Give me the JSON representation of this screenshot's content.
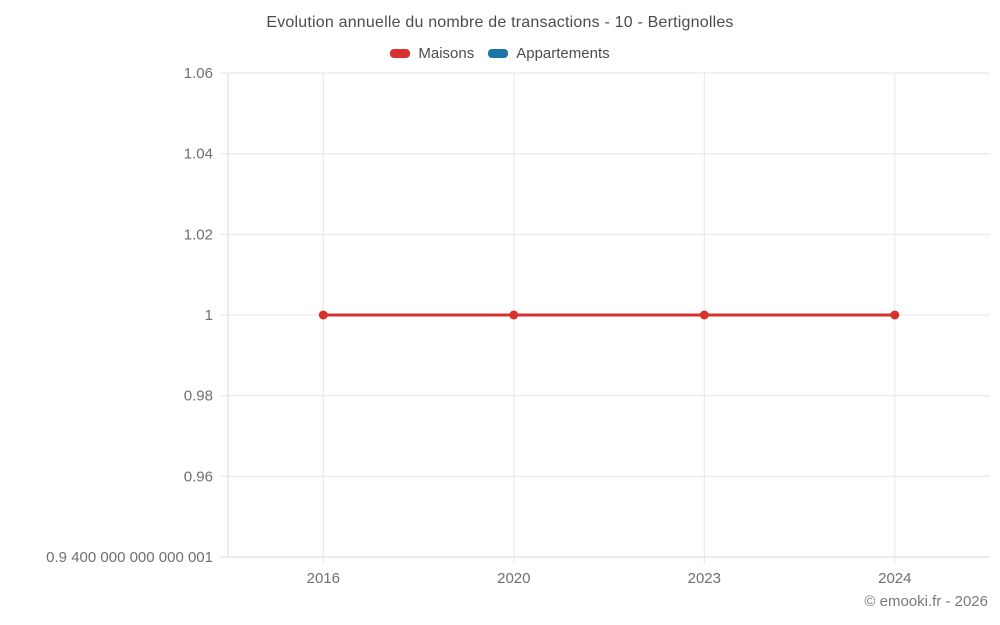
{
  "title": "Evolution annuelle du nombre de transactions - 10 - Bertignolles",
  "copyright": "© emooki.fr - 2026",
  "legend": [
    {
      "label": "Maisons",
      "color": "#d7312e"
    },
    {
      "label": "Appartements",
      "color": "#1a74a6"
    }
  ],
  "chart_data": {
    "type": "line",
    "title": "Evolution annuelle du nombre de transactions - 10 - Bertignolles",
    "categories": [
      "2016",
      "2020",
      "2023",
      "2024"
    ],
    "series": [
      {
        "name": "Maisons",
        "color": "#d7312e",
        "values": [
          1,
          1,
          1,
          1
        ]
      },
      {
        "name": "Appartements",
        "color": "#1a74a6",
        "values": []
      }
    ],
    "xlabel": "",
    "ylabel": "",
    "ylim": [
      0.9400000000000001,
      1.06
    ],
    "y_ticks": [
      {
        "value": 1.06,
        "label": "1.06"
      },
      {
        "value": 1.04,
        "label": "1.04"
      },
      {
        "value": 1.02,
        "label": "1.02"
      },
      {
        "value": 1,
        "label": "1"
      },
      {
        "value": 0.98,
        "label": "0.98"
      },
      {
        "value": 0.96,
        "label": "0.96"
      },
      {
        "value": 0.9400000000000001,
        "label": "0.9 400 000 000 000 001"
      }
    ],
    "grid": true,
    "legend_position": "top",
    "colors": {
      "grid": "#e6e6e6",
      "axis": "#dadada",
      "tick_text": "#6f6f6f"
    }
  }
}
